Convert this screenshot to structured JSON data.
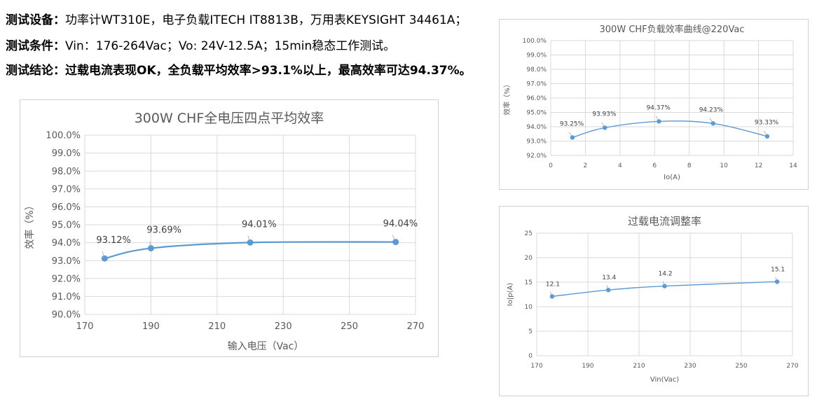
{
  "header": {
    "line1": {
      "label": "测试设备：",
      "text": "功率计WT310E，电子负载ITECH IT8813B，万用表KEYSIGHT 34461A；"
    },
    "line2": {
      "label": "测试条件：",
      "text": "Vin：176-264Vac；Vo: 24V-12.5A；15min稳态工作测试。"
    },
    "line3": {
      "label": "测试结论：",
      "text": "过载电流表现OK，全负载平均效率>93.1%以上，最高效率可达94.37%。"
    }
  },
  "colors": {
    "series": "#5b9bd5",
    "grid": "#d9d9d9",
    "text": "#595959"
  },
  "chart_data": [
    {
      "type": "line",
      "title": "300W CHF全电压四点平均效率",
      "xlabel": "输入电压（Vac）",
      "ylabel": "效率（%）",
      "xlim": [
        170,
        270
      ],
      "ylim": [
        90,
        100
      ],
      "x_ticks": [
        "170",
        "190",
        "210",
        "230",
        "250",
        "270"
      ],
      "y_ticks": [
        "90.0%",
        "91.0%",
        "92.0%",
        "93.0%",
        "94.0%",
        "95.0%",
        "96.0%",
        "97.0%",
        "98.0%",
        "99.0%",
        "100.0%"
      ],
      "x": [
        176,
        190,
        220,
        264
      ],
      "y": [
        93.12,
        93.69,
        94.01,
        94.04
      ],
      "data_labels": [
        "93.12%",
        "93.69%",
        "94.01%",
        "94.04%"
      ],
      "grid": true
    },
    {
      "type": "line",
      "title": "300W CHF负载效率曲线@220Vac",
      "xlabel": "Io(A)",
      "ylabel": "效率（%）",
      "xlim": [
        0,
        14
      ],
      "ylim": [
        92,
        100
      ],
      "x_ticks": [
        "0",
        "2",
        "4",
        "6",
        "8",
        "10",
        "12",
        "14"
      ],
      "y_ticks": [
        "92.0%",
        "93.0%",
        "94.0%",
        "95.0%",
        "96.0%",
        "97.0%",
        "98.0%",
        "99.0%",
        "100.0%"
      ],
      "x": [
        1.25,
        3.125,
        6.25,
        9.375,
        12.5
      ],
      "y": [
        93.25,
        93.93,
        94.37,
        94.23,
        93.33
      ],
      "data_labels": [
        "93.25%",
        "93.93%",
        "94.37%",
        "94.23%",
        "93.33%"
      ],
      "grid": true
    },
    {
      "type": "line",
      "title": "过载电流调整率",
      "xlabel": "Vin(Vac)",
      "ylabel": "Io|p(A)",
      "xlim": [
        170,
        270
      ],
      "ylim": [
        0,
        25
      ],
      "x_ticks": [
        "170",
        "190",
        "210",
        "230",
        "250",
        "270"
      ],
      "y_ticks": [
        "0",
        "5",
        "10",
        "15",
        "20",
        "25"
      ],
      "x": [
        176,
        198,
        220,
        264
      ],
      "y": [
        12.1,
        13.4,
        14.2,
        15.1
      ],
      "data_labels": [
        "12.1",
        "13.4",
        "14.2",
        "15.1"
      ],
      "grid": true
    }
  ]
}
